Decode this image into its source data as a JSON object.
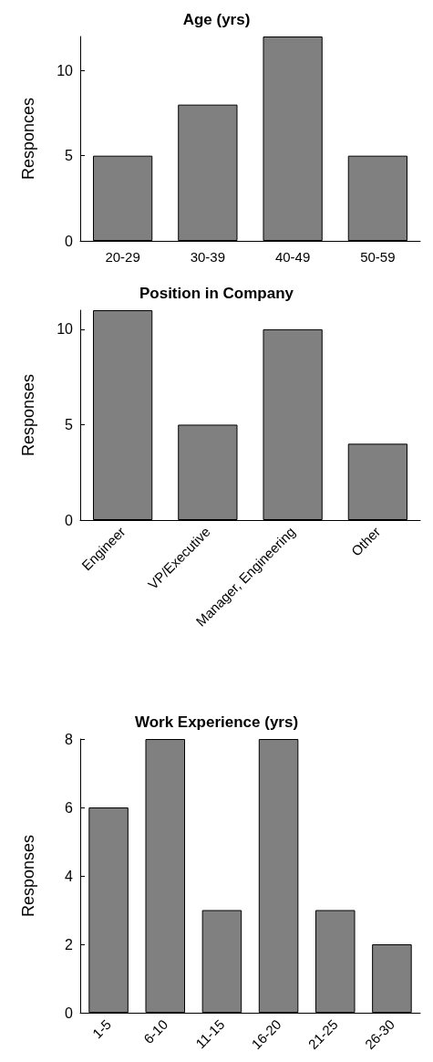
{
  "chart_data": [
    {
      "type": "bar",
      "title": "Age (yrs)",
      "ylabel": "Responces",
      "categories": [
        "20-29",
        "30-39",
        "40-49",
        "50-59"
      ],
      "values": [
        5,
        8,
        12,
        5
      ],
      "color": "#808080",
      "ylim": [
        0,
        12
      ],
      "yticks": [
        0,
        5,
        10
      ],
      "grid": false
    },
    {
      "type": "bar",
      "title": "Position in Company",
      "ylabel": "Responses",
      "categories": [
        "Engineer",
        "VP/Executive",
        "Manager, Engineering",
        "Other"
      ],
      "values": [
        11,
        5,
        10,
        4
      ],
      "color": "#808080",
      "ylim": [
        0,
        11
      ],
      "yticks": [
        0,
        5,
        10
      ],
      "grid": false
    },
    {
      "type": "bar",
      "title": "Work Experience (yrs)",
      "ylabel": "Responses",
      "categories": [
        "1-5",
        "6-10",
        "11-15",
        "16-20",
        "21-25",
        "26-30"
      ],
      "values": [
        6,
        8,
        3,
        8,
        3,
        2
      ],
      "color": "#808080",
      "ylim": [
        0,
        8
      ],
      "yticks": [
        0,
        2,
        4,
        6,
        8
      ],
      "grid": false
    }
  ]
}
